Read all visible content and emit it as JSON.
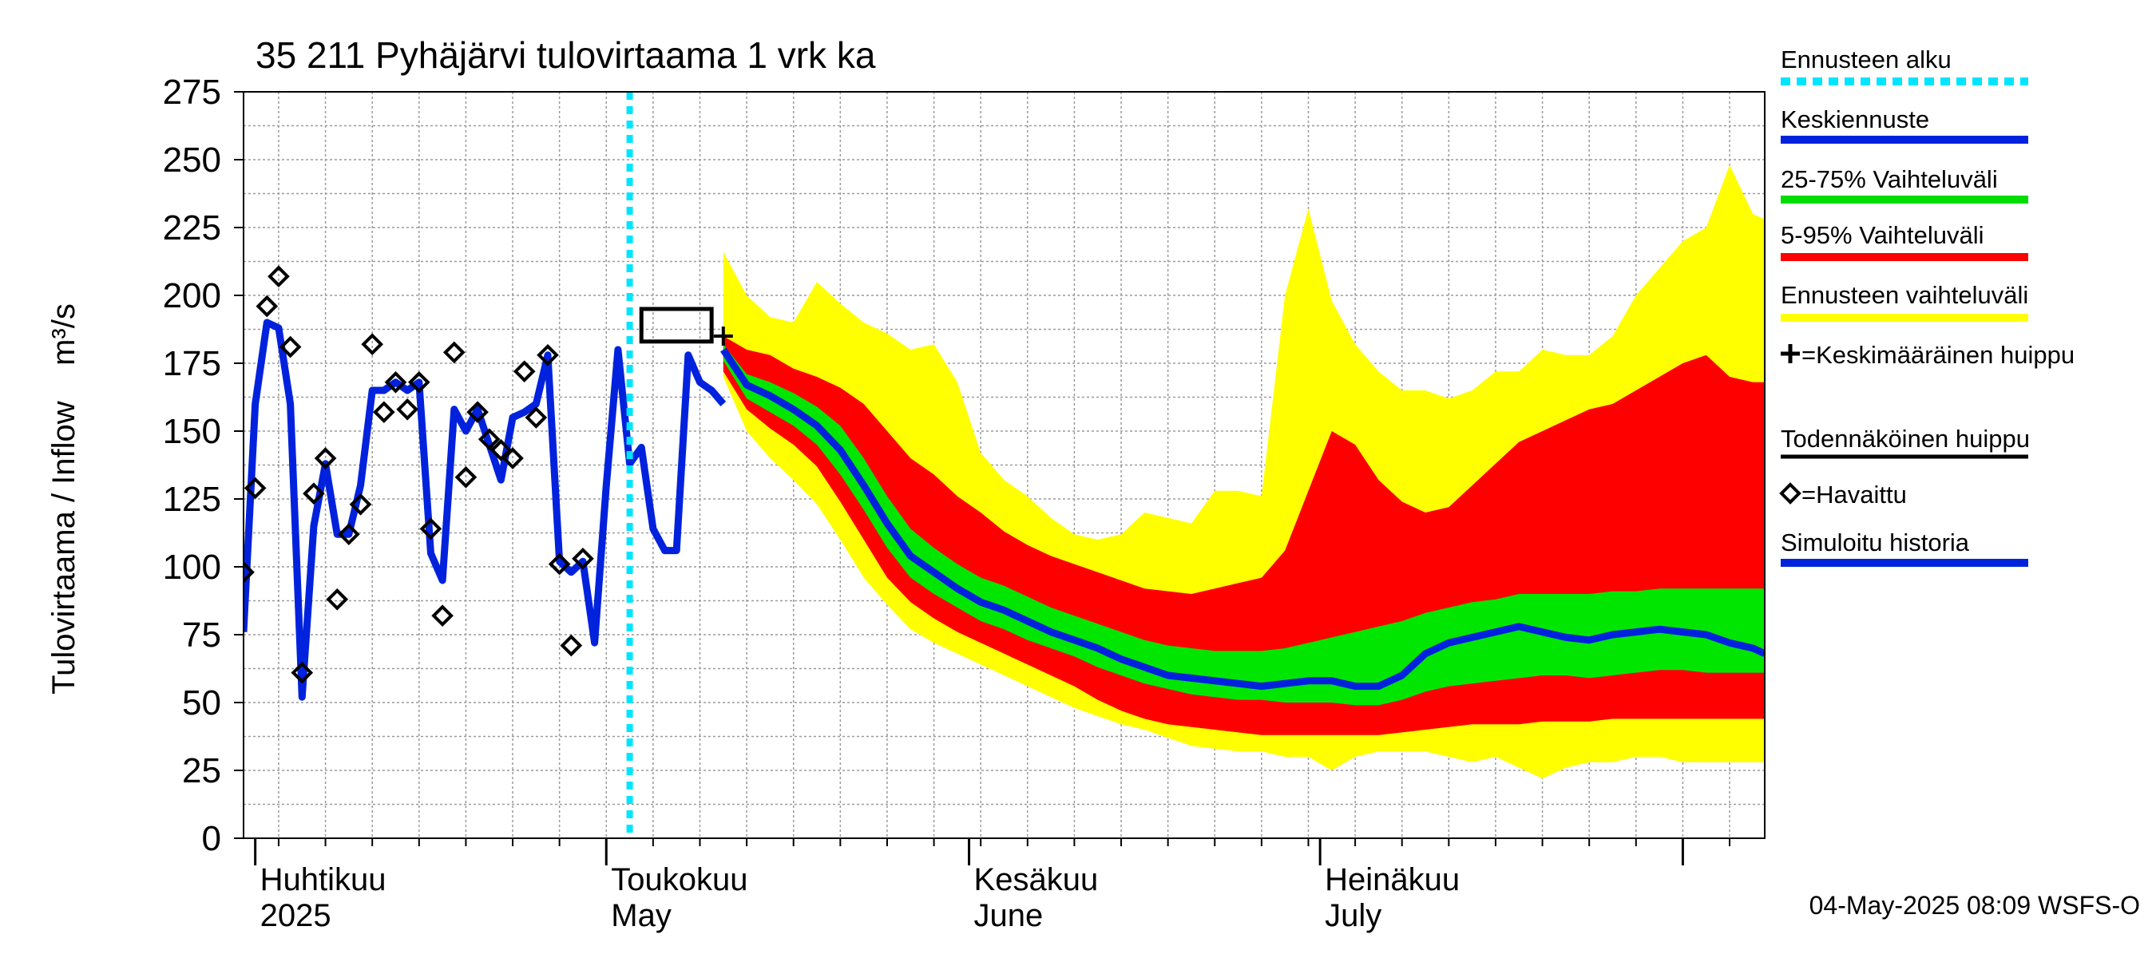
{
  "chart_data": {
    "type": "area",
    "title": "35 211 Pyhäjärvi tulovirtaama 1 vrk ka",
    "ylabel": "Tulovirtaama / Inflow    m³/s",
    "ylim": [
      0,
      275
    ],
    "yticks": [
      0,
      25,
      50,
      75,
      100,
      125,
      150,
      175,
      200,
      225,
      250,
      275
    ],
    "xlim": [
      "2025-03-31",
      "2025-08-08"
    ],
    "grid": true,
    "month_labels": [
      {
        "date": "2025-04-01",
        "fi": "Huhtikuu",
        "en": "2025"
      },
      {
        "date": "2025-05-01",
        "fi": "Toukokuu",
        "en": "May"
      },
      {
        "date": "2025-06-01",
        "fi": "Kesäkuu",
        "en": "June"
      },
      {
        "date": "2025-07-01",
        "fi": "Heinäkuu",
        "en": "July"
      }
    ],
    "forecast_start": "2025-05-03",
    "timestamp": "04-May-2025 08:09 WSFS-O",
    "legend": {
      "placement": "right",
      "items": [
        {
          "label": "Ennusteen alku",
          "color": "#00e5ff",
          "style": "dotted"
        },
        {
          "label": "Keskiennuste",
          "color": "#0022dd",
          "style": "line"
        },
        {
          "label": "25-75% Vaihteluväli",
          "color": "#00dd00",
          "style": "line"
        },
        {
          "label": "5-95% Vaihteluväli",
          "color": "#ff0000",
          "style": "line"
        },
        {
          "label": "Ennusteen vaihteluväli",
          "color": "#ffff00",
          "style": "line"
        },
        {
          "label": "=Keskimääräinen huippu",
          "color": "#000000",
          "style": "plus"
        },
        {
          "label": "Todennäköinen huippu",
          "color": "#000000",
          "style": "line"
        },
        {
          "label": "=Havaittu",
          "color": "#000000",
          "style": "diamond"
        },
        {
          "label": "Simuloitu historia",
          "color": "#0022dd",
          "style": "line"
        }
      ]
    },
    "simulated_history": {
      "x": [
        "2025-03-31",
        "2025-04-01",
        "2025-04-02",
        "2025-04-03",
        "2025-04-04",
        "2025-04-05",
        "2025-04-06",
        "2025-04-07",
        "2025-04-08",
        "2025-04-09",
        "2025-04-10",
        "2025-04-11",
        "2025-04-12",
        "2025-04-13",
        "2025-04-14",
        "2025-04-15",
        "2025-04-16",
        "2025-04-17",
        "2025-04-18",
        "2025-04-19",
        "2025-04-20",
        "2025-04-21",
        "2025-04-22",
        "2025-04-23",
        "2025-04-24",
        "2025-04-25",
        "2025-04-26",
        "2025-04-27",
        "2025-04-28",
        "2025-04-29",
        "2025-04-30",
        "2025-05-01",
        "2025-05-02",
        "2025-05-03",
        "2025-05-04",
        "2025-05-05",
        "2025-05-06",
        "2025-05-07",
        "2025-05-08",
        "2025-05-09",
        "2025-05-10",
        "2025-05-11"
      ],
      "y": [
        76,
        160,
        190,
        188,
        160,
        52,
        115,
        138,
        112,
        112,
        130,
        165,
        165,
        168,
        165,
        168,
        105,
        95,
        158,
        150,
        158,
        145,
        132,
        155,
        157,
        160,
        178,
        102,
        98,
        102,
        72,
        130,
        180,
        138,
        144,
        114,
        106,
        106,
        178,
        168,
        165,
        160
      ]
    },
    "observed": {
      "x": [
        "2025-03-31",
        "2025-04-01",
        "2025-04-02",
        "2025-04-03",
        "2025-04-04",
        "2025-04-05",
        "2025-04-06",
        "2025-04-07",
        "2025-04-08",
        "2025-04-09",
        "2025-04-10",
        "2025-04-11",
        "2025-04-12",
        "2025-04-13",
        "2025-04-14",
        "2025-04-15",
        "2025-04-16",
        "2025-04-17",
        "2025-04-18",
        "2025-04-19",
        "2025-04-20",
        "2025-04-21",
        "2025-04-22",
        "2025-04-23",
        "2025-04-24",
        "2025-04-25",
        "2025-04-26",
        "2025-04-27",
        "2025-04-28",
        "2025-04-29",
        "2025-04-30"
      ],
      "y": [
        98,
        129,
        196,
        207,
        181,
        61,
        127,
        140,
        88,
        112,
        123,
        182,
        157,
        168,
        158,
        168,
        114,
        82,
        179,
        133,
        157,
        147,
        143,
        140,
        172,
        155,
        178,
        101,
        71,
        103,
        null
      ]
    },
    "probable_peak": {
      "x_start": "2025-05-04",
      "x_end": "2025-05-10",
      "low": 183,
      "high": 195
    },
    "mean_peak": {
      "x": "2025-05-11",
      "y": 185
    },
    "forecast": {
      "x": [
        "2025-05-11",
        "2025-05-13",
        "2025-05-15",
        "2025-05-17",
        "2025-05-19",
        "2025-05-21",
        "2025-05-23",
        "2025-05-25",
        "2025-05-27",
        "2025-05-29",
        "2025-05-31",
        "2025-06-02",
        "2025-06-04",
        "2025-06-06",
        "2025-06-08",
        "2025-06-10",
        "2025-06-12",
        "2025-06-14",
        "2025-06-16",
        "2025-06-18",
        "2025-06-20",
        "2025-06-22",
        "2025-06-24",
        "2025-06-26",
        "2025-06-28",
        "2025-06-30",
        "2025-07-02",
        "2025-07-04",
        "2025-07-06",
        "2025-07-08",
        "2025-07-10",
        "2025-07-12",
        "2025-07-14",
        "2025-07-16",
        "2025-07-18",
        "2025-07-20",
        "2025-07-22",
        "2025-07-24",
        "2025-07-26",
        "2025-07-28",
        "2025-07-30",
        "2025-08-01",
        "2025-08-03",
        "2025-08-05",
        "2025-08-07",
        "2025-08-08"
      ],
      "median": [
        180,
        167,
        163,
        158,
        152,
        143,
        130,
        116,
        104,
        98,
        92,
        87,
        84,
        80,
        76,
        73,
        70,
        66,
        63,
        60,
        59,
        58,
        57,
        56,
        57,
        58,
        58,
        56,
        56,
        60,
        68,
        72,
        74,
        76,
        78,
        76,
        74,
        73,
        75,
        76,
        77,
        76,
        75,
        72,
        70,
        68
      ],
      "p25": [
        176,
        162,
        157,
        152,
        145,
        134,
        121,
        107,
        96,
        90,
        85,
        80,
        77,
        73,
        70,
        67,
        63,
        60,
        57,
        55,
        53,
        52,
        51,
        51,
        50,
        50,
        50,
        49,
        49,
        51,
        54,
        56,
        57,
        58,
        59,
        60,
        60,
        59,
        60,
        61,
        62,
        62,
        61,
        61,
        61,
        61
      ],
      "p75": [
        182,
        171,
        168,
        164,
        159,
        152,
        140,
        126,
        114,
        107,
        101,
        96,
        93,
        89,
        85,
        82,
        79,
        76,
        73,
        71,
        70,
        69,
        69,
        69,
        70,
        72,
        74,
        76,
        78,
        80,
        83,
        85,
        87,
        88,
        90,
        90,
        90,
        90,
        91,
        91,
        92,
        92,
        92,
        92,
        92,
        92
      ],
      "p05": [
        172,
        158,
        151,
        145,
        137,
        124,
        110,
        96,
        87,
        81,
        76,
        72,
        68,
        64,
        60,
        56,
        51,
        47,
        44,
        42,
        41,
        40,
        39,
        38,
        38,
        38,
        38,
        38,
        38,
        39,
        40,
        41,
        42,
        42,
        42,
        43,
        43,
        43,
        44,
        44,
        44,
        44,
        44,
        44,
        44,
        44
      ],
      "p95": [
        185,
        180,
        178,
        173,
        170,
        166,
        160,
        150,
        140,
        134,
        126,
        120,
        113,
        108,
        104,
        101,
        98,
        95,
        92,
        91,
        90,
        92,
        94,
        96,
        106,
        128,
        150,
        145,
        132,
        124,
        120,
        122,
        130,
        138,
        146,
        150,
        154,
        158,
        160,
        165,
        170,
        175,
        178,
        170,
        168,
        168
      ],
      "min": [
        170,
        150,
        140,
        132,
        123,
        110,
        96,
        86,
        77,
        72,
        68,
        64,
        60,
        56,
        52,
        48,
        45,
        42,
        40,
        37,
        34,
        33,
        32,
        32,
        30,
        30,
        25,
        30,
        32,
        32,
        32,
        30,
        28,
        30,
        26,
        22,
        26,
        28,
        28,
        30,
        30,
        28,
        28,
        28,
        28,
        28
      ],
      "max": [
        216,
        200,
        192,
        190,
        205,
        197,
        190,
        186,
        180,
        182,
        168,
        142,
        132,
        126,
        118,
        112,
        110,
        112,
        120,
        118,
        116,
        128,
        128,
        126,
        200,
        232,
        198,
        182,
        172,
        165,
        165,
        162,
        165,
        172,
        172,
        180,
        178,
        178,
        185,
        200,
        210,
        220,
        225,
        248,
        230,
        228
      ]
    }
  }
}
